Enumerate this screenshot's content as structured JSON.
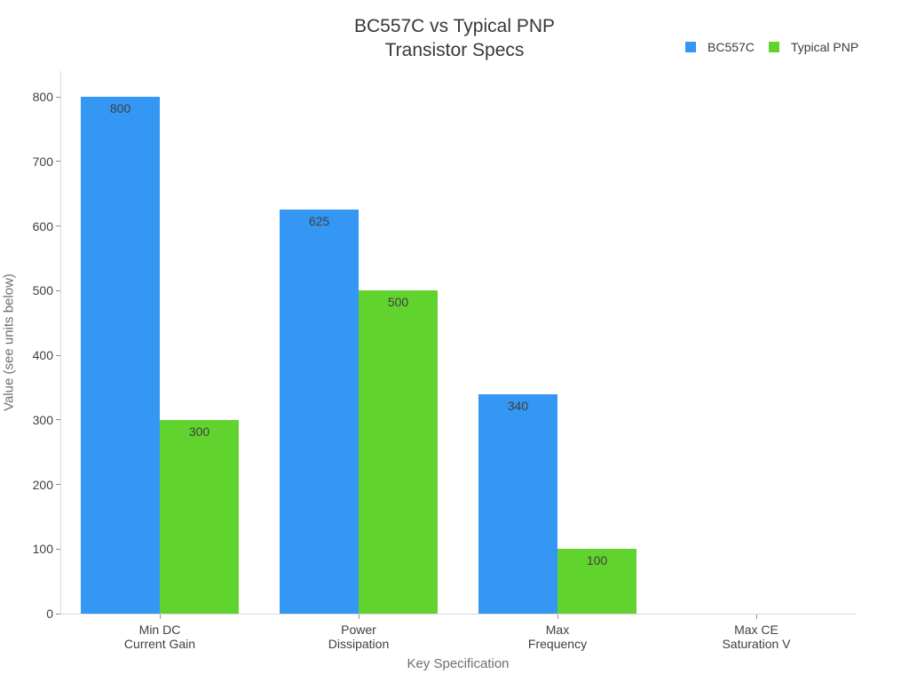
{
  "title": {
    "line1": "BC557C vs Typical PNP",
    "line2": "Transistor Specs"
  },
  "legend": [
    {
      "label": "BC557C",
      "color": "#3397F3"
    },
    {
      "label": "Typical PNP",
      "color": "#61D32E"
    }
  ],
  "chart_data": {
    "type": "bar",
    "title": "BC557C vs Typical PNP Transistor Specs",
    "categories": [
      [
        "Min DC",
        "Current Gain"
      ],
      [
        "Power",
        "Dissipation"
      ],
      [
        "Max",
        "Frequency"
      ],
      [
        "Max CE",
        "Saturation V"
      ]
    ],
    "series": [
      {
        "name": "BC557C",
        "color": "#3397F3",
        "values": [
          800,
          625,
          340,
          0
        ],
        "bar_labels": [
          "800",
          "625",
          "340",
          ""
        ]
      },
      {
        "name": "Typical PNP",
        "color": "#61D32E",
        "values": [
          300,
          500,
          100,
          0
        ],
        "bar_labels": [
          "300",
          "500",
          "100",
          ""
        ]
      }
    ],
    "xlabel": "Key Specification",
    "ylabel": "Value (see units below)",
    "yticks": [
      0,
      100,
      200,
      300,
      400,
      500,
      600,
      700,
      800
    ],
    "ylim": [
      0,
      840
    ],
    "grid": false,
    "legend_position": "top-right"
  }
}
